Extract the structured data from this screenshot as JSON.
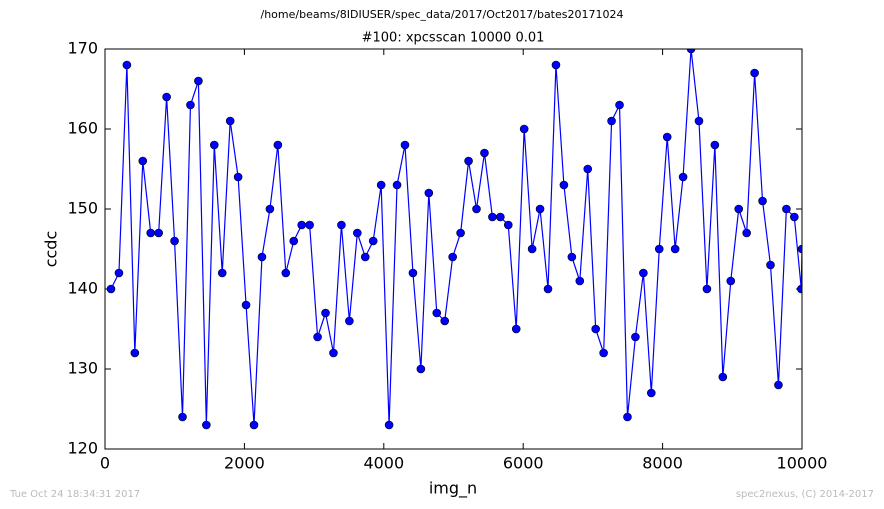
{
  "chart_data": {
    "type": "line",
    "suptitle": "/home/beams/8IDIUSER/spec_data/2017/Oct2017/bates20171024",
    "title": "#100: xpcsscan 10000 0.01",
    "x_label": "img_n",
    "y_label": "ccdc",
    "footer_left": "Tue Oct 24 18:34:31 2017",
    "footer_right": "spec2nexus, (C) 2014-2017",
    "xlim": [
      0,
      10000
    ],
    "xticks": [
      0,
      2000,
      4000,
      6000,
      8000,
      10000
    ],
    "ylim": [
      120,
      170
    ],
    "yticks": [
      120,
      130,
      140,
      150,
      160,
      170
    ],
    "series": [
      {
        "color": "#0000ff",
        "x": [
          86,
          200,
          314,
          428,
          542,
          656,
          770,
          884,
          998,
          1112,
          1226,
          1340,
          1454,
          1568,
          1682,
          1796,
          1910,
          2024,
          2138,
          2252,
          2366,
          2480,
          2594,
          2708,
          2822,
          2936,
          3050,
          3164,
          3278,
          3392,
          3506,
          3620,
          3734,
          3848,
          3962,
          4076,
          4190,
          4304,
          4418,
          4532,
          4646,
          4760,
          4874,
          4988,
          5102,
          5216,
          5330,
          5444,
          5558,
          5672,
          5786,
          5900,
          6014,
          6128,
          6242,
          6356,
          6470,
          6584,
          6698,
          6812,
          6926,
          7040,
          7154,
          7268,
          7382,
          7496,
          7610,
          7724,
          7838,
          7952,
          8066,
          8180,
          8294,
          8408,
          8522,
          8636,
          8750,
          8864,
          8978,
          9092,
          9206,
          9320,
          9434,
          9548,
          9662,
          9776,
          9890,
          9990,
          10000
        ],
        "values": [
          140,
          142,
          168,
          132,
          156,
          147,
          147,
          164,
          146,
          124,
          163,
          166,
          123,
          158,
          142,
          161,
          154,
          138,
          123,
          144,
          150,
          158,
          142,
          146,
          148,
          148,
          134,
          137,
          132,
          148,
          136,
          147,
          144,
          146,
          153,
          123,
          153,
          158,
          142,
          130,
          152,
          137,
          136,
          144,
          147,
          156,
          150,
          157,
          149,
          149,
          148,
          135,
          160,
          145,
          150,
          140,
          168,
          153,
          144,
          141,
          155,
          135,
          132,
          161,
          163,
          124,
          134,
          142,
          127,
          145,
          159,
          145,
          154,
          170,
          161,
          140,
          158,
          129,
          141,
          150,
          147,
          167,
          151,
          143,
          128,
          150,
          149,
          140,
          145
        ]
      }
    ]
  }
}
